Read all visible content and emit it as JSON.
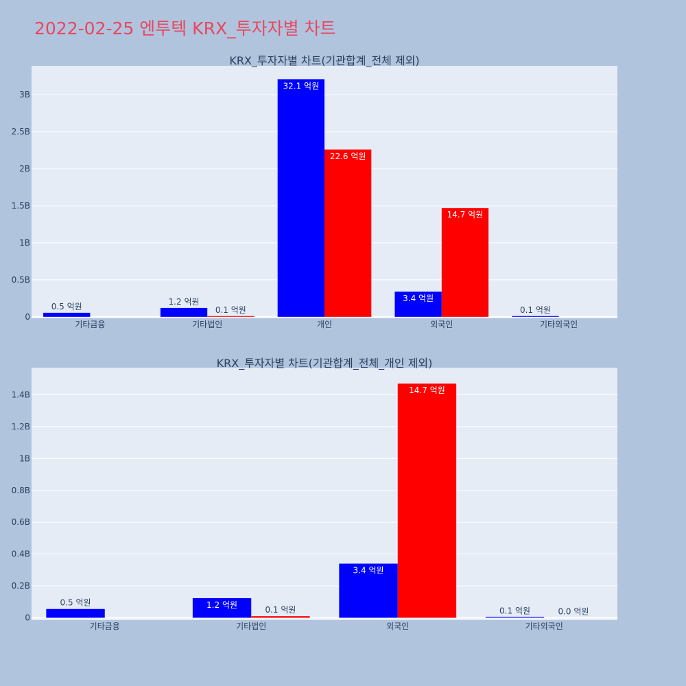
{
  "page": {
    "title": "2022-02-25 엔투텍 KRX_투자자별 차트",
    "title_color": "#e8475f",
    "background": "#b0c4de"
  },
  "chart_data": [
    {
      "type": "bar",
      "title": "KRX_투자자별 차트(기관합계_전체 제외)",
      "categories": [
        "기타금융",
        "기타법인",
        "개인",
        "외국인",
        "기타외국인"
      ],
      "series": [
        {
          "color": "#0000ff",
          "values": [
            55000000,
            120000000,
            3210000000,
            340000000,
            10000000
          ]
        },
        {
          "color": "#ff0000",
          "values": [
            0,
            10000000,
            2260000000,
            1470000000,
            0
          ]
        }
      ],
      "bar_labels": [
        [
          "0.5 억원",
          "1.2 억원",
          "32.1 억원",
          "3.4 억원",
          "0.1 억원"
        ],
        [
          "",
          "0.1 억원",
          "22.6 억원",
          "14.7 억원",
          ""
        ]
      ],
      "yticks": [
        0,
        500000000,
        1000000000,
        1500000000,
        2000000000,
        2500000000,
        3000000000
      ],
      "ytick_labels": [
        "0",
        "0.5B",
        "1B",
        "1.5B",
        "2B",
        "2.5B",
        "3B"
      ],
      "ylim": [
        -20000000,
        3390000000
      ],
      "grid": true,
      "plot_bg": "#e5ecf6"
    },
    {
      "type": "bar",
      "title": "KRX_투자자별 차트(기관합계_전체_개인 제외)",
      "categories": [
        "기타금융",
        "기타법인",
        "외국인",
        "기타외국인"
      ],
      "series": [
        {
          "color": "#0000ff",
          "values": [
            55000000,
            123000000,
            340000000,
            5000000
          ]
        },
        {
          "color": "#ff0000",
          "values": [
            0,
            10000000,
            1470000000,
            0
          ]
        }
      ],
      "bar_labels": [
        [
          "0.5 억원",
          "1.2 억원",
          "3.4 억원",
          "0.1 억원"
        ],
        [
          "",
          "0.1 억원",
          "14.7 억원",
          "0.0 억원"
        ]
      ],
      "yticks": [
        0,
        200000000,
        400000000,
        600000000,
        800000000,
        1000000000,
        1200000000,
        1400000000
      ],
      "ytick_labels": [
        "0",
        "0.2B",
        "0.4B",
        "0.6B",
        "0.8B",
        "1B",
        "1.2B",
        "1.4B"
      ],
      "ylim": [
        -15000000,
        1570000000
      ],
      "grid": true,
      "plot_bg": "#e5ecf6"
    }
  ]
}
